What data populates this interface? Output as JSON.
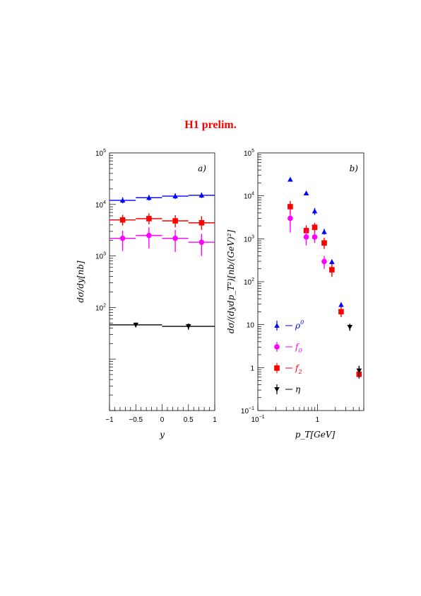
{
  "title": "H1 prelim.",
  "colors": {
    "rho0": "#0000ff",
    "f0": "#ff00ff",
    "f2": "#ff0000",
    "eta": "#000000",
    "title": "#ff0000"
  },
  "chart_data": [
    {
      "type": "scatter",
      "panel_tag": "a)",
      "xlabel": "y",
      "ylabel": "dσ/dy[nb]",
      "xlim": [
        -1,
        1
      ],
      "ylim": [
        1,
        100000
      ],
      "yscale": "log",
      "grid": false,
      "x_ticks": [
        {
          "value": -1,
          "label": "−1"
        },
        {
          "value": -0.5,
          "label": "−0.5"
        },
        {
          "value": 0,
          "label": "0"
        },
        {
          "value": 0.5,
          "label": "0.5"
        },
        {
          "value": 1,
          "label": "1"
        }
      ],
      "y_ticks": [
        {
          "value": 100,
          "base": "10",
          "exp": "2"
        },
        {
          "value": 1000,
          "base": "10",
          "exp": "3"
        },
        {
          "value": 10000,
          "base": "10",
          "exp": "4"
        },
        {
          "value": 100000,
          "base": "10",
          "exp": "5"
        }
      ],
      "series": [
        {
          "key": "rho0",
          "marker": "triangle-up",
          "points": [
            {
              "x": -0.75,
              "xlo": -1.0,
              "xhi": -0.5,
              "y": 12000,
              "ylo": 10500,
              "yhi": 13700
            },
            {
              "x": -0.25,
              "xlo": -0.5,
              "xhi": 0.0,
              "y": 13500,
              "ylo": 11900,
              "yhi": 15300
            },
            {
              "x": 0.25,
              "xlo": 0.0,
              "xhi": 0.5,
              "y": 14500,
              "ylo": 12800,
              "yhi": 16400
            },
            {
              "x": 0.75,
              "xlo": 0.5,
              "xhi": 1.0,
              "y": 15000,
              "ylo": 13300,
              "yhi": 17000
            }
          ]
        },
        {
          "key": "f2",
          "marker": "square",
          "points": [
            {
              "x": -0.75,
              "xlo": -1.0,
              "xhi": -0.5,
              "y": 5000,
              "ylo": 3900,
              "yhi": 6300
            },
            {
              "x": -0.25,
              "xlo": -0.5,
              "xhi": 0.0,
              "y": 5300,
              "ylo": 4100,
              "yhi": 6700
            },
            {
              "x": 0.25,
              "xlo": 0.0,
              "xhi": 0.5,
              "y": 4800,
              "ylo": 3600,
              "yhi": 6200
            },
            {
              "x": 0.75,
              "xlo": 0.5,
              "xhi": 1.0,
              "y": 4400,
              "ylo": 3200,
              "yhi": 5900
            }
          ]
        },
        {
          "key": "f0",
          "marker": "circle",
          "points": [
            {
              "x": -0.75,
              "xlo": -1.0,
              "xhi": -0.5,
              "y": 2200,
              "ylo": 1250,
              "yhi": 3100
            },
            {
              "x": -0.25,
              "xlo": -0.5,
              "xhi": 0.0,
              "y": 2500,
              "ylo": 1400,
              "yhi": 3600
            },
            {
              "x": 0.25,
              "xlo": 0.0,
              "xhi": 0.5,
              "y": 2200,
              "ylo": 1200,
              "yhi": 3200
            },
            {
              "x": 0.75,
              "xlo": 0.5,
              "xhi": 1.0,
              "y": 1850,
              "ylo": 1000,
              "yhi": 2700
            }
          ]
        },
        {
          "key": "eta",
          "marker": "triangle-down",
          "points": [
            {
              "x": -0.5,
              "xlo": -1.0,
              "xhi": 0.0,
              "y": 46,
              "ylo": 41,
              "yhi": 51
            },
            {
              "x": 0.5,
              "xlo": 0.0,
              "xhi": 1.0,
              "y": 43,
              "ylo": 37,
              "yhi": 49
            }
          ]
        }
      ]
    },
    {
      "type": "scatter",
      "panel_tag": "b)",
      "xlabel": "p_T[GeV]",
      "ylabel": "dσ/(dydp_T²)[nb/(GeV)²]",
      "xlim": [
        0.1,
        6
      ],
      "ylim": [
        0.1,
        100000
      ],
      "xscale": "log",
      "yscale": "log",
      "grid": false,
      "legend_position": "bottom-left",
      "x_ticks": [
        {
          "value": 0.1,
          "base": "10",
          "exp": "−1"
        },
        {
          "value": 1,
          "base": "1",
          "exp": ""
        }
      ],
      "y_ticks": [
        {
          "value": 0.1,
          "base": "10",
          "exp": "−1"
        },
        {
          "value": 1,
          "base": "1",
          "exp": ""
        },
        {
          "value": 10,
          "base": "10",
          "exp": ""
        },
        {
          "value": 100,
          "base": "10",
          "exp": "2"
        },
        {
          "value": 1000,
          "base": "10",
          "exp": "3"
        },
        {
          "value": 10000,
          "base": "10",
          "exp": "4"
        },
        {
          "value": 100000,
          "base": "10",
          "exp": "5"
        }
      ],
      "legend": [
        {
          "key": "rho0",
          "marker": "triangle-up",
          "sym": "ρ",
          "sup": "0",
          "sub": ""
        },
        {
          "key": "f0",
          "marker": "circle",
          "sym": "f",
          "sup": "",
          "sub": "0"
        },
        {
          "key": "f2",
          "marker": "square",
          "sym": "f",
          "sup": "",
          "sub": "2"
        },
        {
          "key": "eta",
          "marker": "triangle-down",
          "sym": "η",
          "sup": "",
          "sub": ""
        }
      ],
      "series": [
        {
          "key": "rho0",
          "marker": "triangle-up",
          "points": [
            {
              "x": 0.35,
              "y": 24000,
              "ylo": 22000,
              "yhi": 26000
            },
            {
              "x": 0.65,
              "y": 11500,
              "ylo": 10500,
              "yhi": 12500
            },
            {
              "x": 0.9,
              "y": 4400,
              "ylo": 3600,
              "yhi": 5200
            },
            {
              "x": 1.3,
              "y": 1450,
              "ylo": 1250,
              "yhi": 1700
            },
            {
              "x": 1.75,
              "y": 290,
              "ylo": 250,
              "yhi": 330
            },
            {
              "x": 2.5,
              "y": 29,
              "ylo": 25,
              "yhi": 33
            },
            {
              "x": 5.0,
              "y": 0.7,
              "ylo": 0.55,
              "yhi": 0.85
            }
          ]
        },
        {
          "key": "f2",
          "marker": "square",
          "points": [
            {
              "x": 0.35,
              "y": 5600,
              "ylo": 3800,
              "yhi": 7600
            },
            {
              "x": 0.65,
              "y": 1550,
              "ylo": 1050,
              "yhi": 2050
            },
            {
              "x": 0.9,
              "y": 1850,
              "ylo": 1350,
              "yhi": 2350
            },
            {
              "x": 1.3,
              "y": 800,
              "ylo": 580,
              "yhi": 1050
            },
            {
              "x": 1.75,
              "y": 190,
              "ylo": 130,
              "yhi": 255
            },
            {
              "x": 2.5,
              "y": 20,
              "ylo": 15,
              "yhi": 26
            },
            {
              "x": 5.0,
              "y": 0.7,
              "ylo": 0.58,
              "yhi": 0.85
            }
          ]
        },
        {
          "key": "f0",
          "marker": "circle",
          "points": [
            {
              "x": 0.35,
              "y": 3000,
              "ylo": 1400,
              "yhi": 4700
            },
            {
              "x": 0.65,
              "y": 1100,
              "ylo": 700,
              "yhi": 1600
            },
            {
              "x": 0.9,
              "y": 1100,
              "ylo": 800,
              "yhi": 1450
            },
            {
              "x": 1.3,
              "y": 295,
              "ylo": 200,
              "yhi": 400
            }
          ]
        },
        {
          "key": "eta",
          "marker": "triangle-down",
          "points": [
            {
              "x": 3.5,
              "y": 8.8,
              "ylo": 7.2,
              "yhi": 10.5
            },
            {
              "x": 5.0,
              "y": 0.85,
              "ylo": 0.6,
              "yhi": 1.1
            }
          ]
        }
      ]
    }
  ]
}
